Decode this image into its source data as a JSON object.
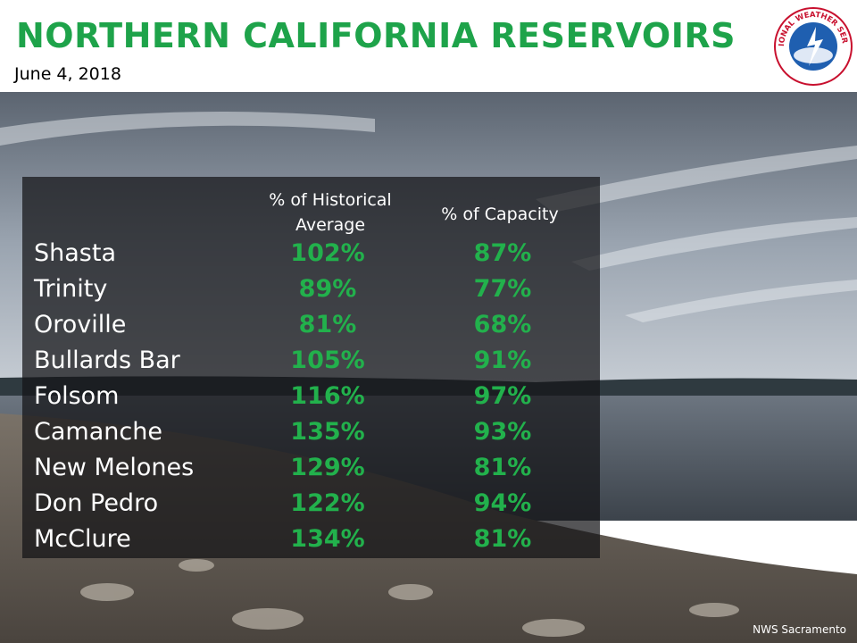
{
  "header": {
    "title": "NORTHERN CALIFORNIA RESERVOIRS",
    "date": "June 4, 2018"
  },
  "logo": {
    "text": "NATIONAL WEATHER SERVICE"
  },
  "table": {
    "columns": [
      "% of Historical Average",
      "% of Capacity"
    ],
    "rows": [
      [
        "Shasta",
        "102%",
        "87%"
      ],
      [
        "Trinity",
        "89%",
        "77%"
      ],
      [
        "Oroville",
        "81%",
        "68%"
      ],
      [
        "Bullards Bar",
        "105%",
        "91%"
      ],
      [
        "Folsom",
        "116%",
        "97%"
      ],
      [
        "Camanche",
        "135%",
        "93%"
      ],
      [
        "New Melones",
        "129%",
        "81%"
      ],
      [
        "Don Pedro",
        "122%",
        "94%"
      ],
      [
        "McClure",
        "134%",
        "81%"
      ]
    ]
  },
  "footer": "NWS Sacramento"
}
